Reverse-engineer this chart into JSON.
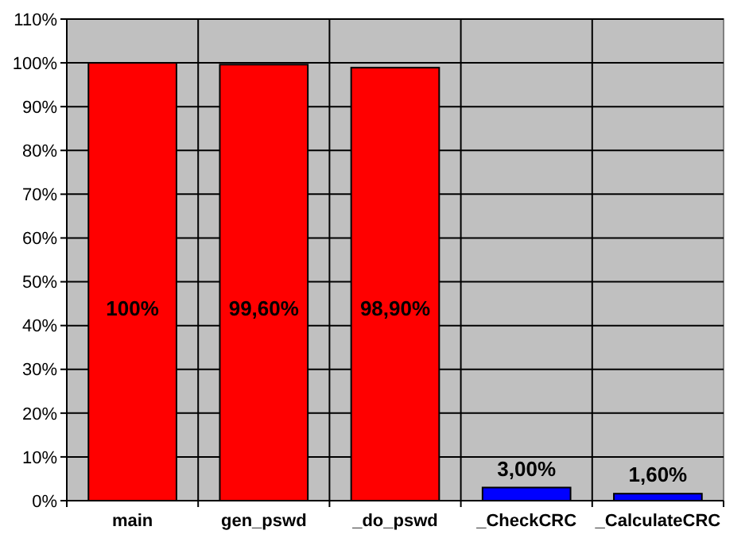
{
  "chart_data": {
    "type": "bar",
    "categories": [
      "main",
      "gen_pswd",
      "_do_pswd",
      "_CheckCRC",
      "_CalculateCRC"
    ],
    "values": [
      100,
      99.6,
      98.9,
      3.0,
      1.6
    ],
    "colors": [
      "#ff0000",
      "#ff0000",
      "#ff0000",
      "#0000ff",
      "#0000ff"
    ],
    "value_labels": [
      "100%",
      "99,60%",
      "98,90%",
      "3,00%",
      "1,60%"
    ],
    "ylim": [
      0,
      110
    ],
    "yticks": [
      {
        "value": 0,
        "label": "0%"
      },
      {
        "value": 10,
        "label": "10%"
      },
      {
        "value": 20,
        "label": "20%"
      },
      {
        "value": 30,
        "label": "30%"
      },
      {
        "value": 40,
        "label": "40%"
      },
      {
        "value": 50,
        "label": "50%"
      },
      {
        "value": 60,
        "label": "60%"
      },
      {
        "value": 70,
        "label": "70%"
      },
      {
        "value": 80,
        "label": "80%"
      },
      {
        "value": 90,
        "label": "90%"
      },
      {
        "value": 100,
        "label": "100%"
      },
      {
        "value": 110,
        "label": "110%"
      }
    ],
    "grid": true
  }
}
